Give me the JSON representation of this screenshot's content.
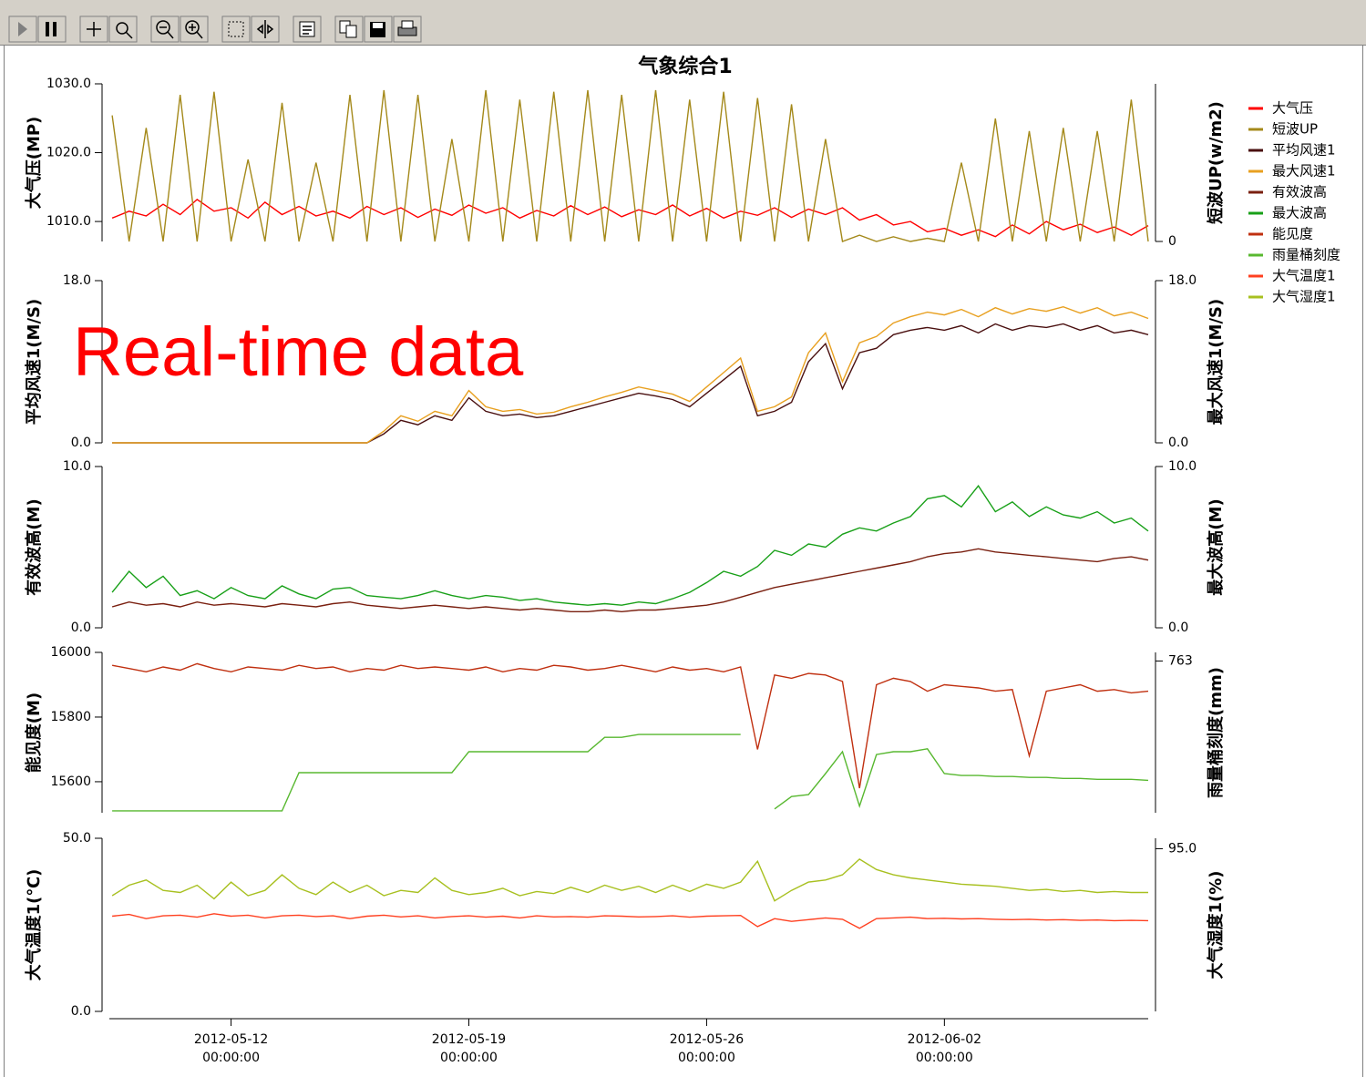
{
  "chart_data": {
    "type": "line",
    "title": "气象综合1",
    "annotation": "Real-time data",
    "legend": "right",
    "x": [
      "2012-05-08 12:00",
      "2012-05-09 00:00",
      "2012-05-09 12:00",
      "2012-05-10 00:00",
      "2012-05-10 12:00",
      "2012-05-11 00:00",
      "2012-05-11 12:00",
      "2012-05-12 00:00",
      "2012-05-12 12:00",
      "2012-05-13 00:00",
      "2012-05-13 12:00",
      "2012-05-14 00:00",
      "2012-05-14 12:00",
      "2012-05-15 00:00",
      "2012-05-15 12:00",
      "2012-05-16 00:00",
      "2012-05-16 12:00",
      "2012-05-17 00:00",
      "2012-05-17 12:00",
      "2012-05-18 00:00",
      "2012-05-18 12:00",
      "2012-05-19 00:00",
      "2012-05-19 12:00",
      "2012-05-20 00:00",
      "2012-05-20 12:00",
      "2012-05-21 00:00",
      "2012-05-21 12:00",
      "2012-05-22 00:00",
      "2012-05-22 12:00",
      "2012-05-23 00:00",
      "2012-05-23 12:00",
      "2012-05-24 00:00",
      "2012-05-24 12:00",
      "2012-05-25 00:00",
      "2012-05-25 12:00",
      "2012-05-26 00:00",
      "2012-05-26 12:00",
      "2012-05-27 00:00",
      "2012-05-27 12:00",
      "2012-05-28 00:00",
      "2012-05-28 12:00",
      "2012-05-29 00:00",
      "2012-05-29 12:00",
      "2012-05-30 00:00",
      "2012-05-30 12:00",
      "2012-05-31 00:00",
      "2012-05-31 12:00",
      "2012-06-01 00:00",
      "2012-06-01 12:00",
      "2012-06-02 00:00",
      "2012-06-02 12:00",
      "2012-06-03 00:00",
      "2012-06-03 12:00",
      "2012-06-04 00:00",
      "2012-06-04 12:00",
      "2012-06-05 00:00",
      "2012-06-05 12:00",
      "2012-06-06 00:00",
      "2012-06-06 12:00",
      "2012-06-07 00:00",
      "2012-06-07 12:00",
      "2012-06-08 00:00"
    ],
    "xlim": [
      "2012-05-08 10:00",
      "2012-06-08 00:00"
    ],
    "xticks": [
      {
        "value": "2012-05-12 00:00",
        "label": "2012-05-12",
        "time": "00:00:00"
      },
      {
        "value": "2012-05-19 00:00",
        "label": "2012-05-19",
        "time": "00:00:00"
      },
      {
        "value": "2012-05-26 00:00",
        "label": "2012-05-26",
        "time": "00:00:00"
      },
      {
        "value": "2012-06-02 00:00",
        "label": "2012-06-02",
        "time": "00:00:00"
      }
    ],
    "panels": [
      {
        "ylabel": "大气压(MP)",
        "y2label": "短波UP(w/m2)",
        "ylim": [
          1007.1,
          1030
        ],
        "yticks": [
          {
            "value": 1010,
            "label": "1010.0"
          },
          {
            "value": 1020,
            "label": "1020.0"
          },
          {
            "value": 1030,
            "label": "1030.0"
          }
        ],
        "y2lim": [
          0,
          1000
        ],
        "y2ticks": [
          0
        ],
        "series": [
          {
            "name": "大气压",
            "color": "#ff0000",
            "values": [
              1010.5,
              1011.5,
              1010.8,
              1012.5,
              1011.0,
              1013.2,
              1011.5,
              1012.0,
              1010.5,
              1012.8,
              1011.0,
              1012.2,
              1010.8,
              1011.5,
              1010.5,
              1012.2,
              1011.0,
              1012.0,
              1010.6,
              1011.8,
              1010.9,
              1012.4,
              1011.2,
              1012.0,
              1010.5,
              1011.6,
              1010.8,
              1012.3,
              1011.0,
              1012.1,
              1010.7,
              1011.7,
              1011.0,
              1012.4,
              1010.8,
              1011.9,
              1010.5,
              1011.5,
              1010.9,
              1012.0,
              1010.6,
              1011.8,
              1011.0,
              1012.0,
              1010.2,
              1011.0,
              1009.5,
              1010.0,
              1008.5,
              1009.0,
              1008.0,
              1008.8,
              1007.8,
              1009.5,
              1008.2,
              1010.0,
              1008.8,
              1009.6,
              1008.4,
              1009.2,
              1008.0,
              1009.4
            ]
          },
          {
            "name": "短波UP",
            "color": "#a4891a",
            "axis": "y2",
            "values": [
              800,
              0,
              720,
              0,
              930,
              0,
              950,
              0,
              520,
              0,
              880,
              0,
              500,
              0,
              930,
              0,
              960,
              0,
              930,
              0,
              650,
              0,
              960,
              0,
              900,
              0,
              950,
              0,
              960,
              0,
              930,
              0,
              960,
              0,
              900,
              0,
              950,
              0,
              910,
              0,
              870,
              0,
              650,
              0,
              40,
              0,
              30,
              0,
              20,
              0,
              500,
              0,
              780,
              0,
              700,
              0,
              720,
              0,
              700,
              0,
              900,
              0
            ]
          }
        ]
      },
      {
        "ylabel": "平均风速1(M/S)",
        "y2label": "最大风速1(M/S)",
        "ylim": [
          0,
          18
        ],
        "yticks": [
          {
            "value": 0,
            "label": "0.0"
          },
          {
            "value": 18,
            "label": "18.0"
          }
        ],
        "y2lim": [
          0,
          18
        ],
        "y2ticks": [
          {
            "value": 0,
            "label": "0.0"
          },
          {
            "value": 18,
            "label": "18.0"
          }
        ],
        "series": [
          {
            "name": "平均风速1",
            "color": "#4a1010",
            "values": [
              0,
              0,
              0,
              0,
              0,
              0,
              0,
              0,
              0,
              0,
              0,
              0,
              0,
              0,
              0,
              0,
              1.0,
              2.5,
              2.0,
              3.0,
              2.5,
              5.0,
              3.5,
              3.0,
              3.2,
              2.8,
              3.0,
              3.5,
              4.0,
              4.5,
              5.0,
              5.5,
              5.2,
              4.8,
              4.0,
              5.5,
              7.0,
              8.5,
              3.0,
              3.5,
              4.5,
              9.0,
              11.0,
              6.0,
              10.0,
              10.5,
              12.0,
              12.5,
              12.8,
              12.5,
              13.0,
              12.2,
              13.2,
              12.5,
              13.0,
              12.8,
              13.2,
              12.5,
              13.0,
              12.2,
              12.5,
              12.0
            ]
          },
          {
            "name": "最大风速1",
            "color": "#e8a020",
            "axis": "y2",
            "values": [
              0,
              0,
              0,
              0,
              0,
              0,
              0,
              0,
              0,
              0,
              0,
              0,
              0,
              0,
              0,
              0,
              1.3,
              3.0,
              2.4,
              3.5,
              3.0,
              5.8,
              4.0,
              3.5,
              3.7,
              3.2,
              3.4,
              4.0,
              4.5,
              5.1,
              5.6,
              6.2,
              5.8,
              5.4,
              4.6,
              6.2,
              7.8,
              9.4,
              3.5,
              4.0,
              5.1,
              10.0,
              12.2,
              6.8,
              11.1,
              11.8,
              13.3,
              14.0,
              14.5,
              14.2,
              14.8,
              14.0,
              15.0,
              14.3,
              14.9,
              14.6,
              15.1,
              14.4,
              15.0,
              14.1,
              14.5,
              13.8
            ]
          }
        ]
      },
      {
        "ylabel": "有效波高(M)",
        "y2label": "最大波高(M)",
        "ylim": [
          0,
          10
        ],
        "yticks": [
          {
            "value": 0,
            "label": "0.0"
          },
          {
            "value": 10,
            "label": "10.0"
          }
        ],
        "y2lim": [
          0,
          10
        ],
        "y2ticks": [
          {
            "value": 0,
            "label": "0.0"
          },
          {
            "value": 10,
            "label": "10.0"
          }
        ],
        "series": [
          {
            "name": "有效波高",
            "color": "#7a2010",
            "values": [
              1.3,
              1.6,
              1.4,
              1.5,
              1.3,
              1.6,
              1.4,
              1.5,
              1.4,
              1.3,
              1.5,
              1.4,
              1.3,
              1.5,
              1.6,
              1.4,
              1.3,
              1.2,
              1.3,
              1.4,
              1.3,
              1.2,
              1.3,
              1.2,
              1.1,
              1.2,
              1.1,
              1.0,
              1.0,
              1.1,
              1.0,
              1.1,
              1.1,
              1.2,
              1.3,
              1.4,
              1.6,
              1.9,
              2.2,
              2.5,
              2.7,
              2.9,
              3.1,
              3.3,
              3.5,
              3.7,
              3.9,
              4.1,
              4.4,
              4.6,
              4.7,
              4.9,
              4.7,
              4.6,
              4.5,
              4.4,
              4.3,
              4.2,
              4.1,
              4.3,
              4.4,
              4.2
            ]
          },
          {
            "name": "最大波高",
            "color": "#18a018",
            "axis": "y2",
            "values": [
              2.2,
              3.5,
              2.5,
              3.2,
              2.0,
              2.3,
              1.8,
              2.5,
              2.0,
              1.8,
              2.6,
              2.1,
              1.8,
              2.4,
              2.5,
              2.0,
              1.9,
              1.8,
              2.0,
              2.3,
              2.0,
              1.8,
              2.0,
              1.9,
              1.7,
              1.8,
              1.6,
              1.5,
              1.4,
              1.5,
              1.4,
              1.6,
              1.5,
              1.8,
              2.2,
              2.8,
              3.5,
              3.2,
              3.8,
              4.8,
              4.5,
              5.2,
              5.0,
              5.8,
              6.2,
              6.0,
              6.5,
              6.9,
              8.0,
              8.2,
              7.5,
              8.8,
              7.2,
              7.8,
              6.9,
              7.5,
              7.0,
              6.8,
              7.2,
              6.5,
              6.8,
              6.0
            ]
          }
        ]
      },
      {
        "ylabel": "能见度(M)",
        "y2label": "雨量桶刻度(mm)",
        "ylim": [
          15504,
          16000
        ],
        "yticks": [
          15600,
          15800,
          16000
        ],
        "y2lim": [
          747.1,
          763.9
        ],
        "y2ticks": [
          763
        ],
        "series": [
          {
            "name": "能见度",
            "color": "#c03010",
            "values": [
              15960,
              15950,
              15940,
              15955,
              15945,
              15965,
              15950,
              15940,
              15955,
              15950,
              15945,
              15960,
              15950,
              15955,
              15940,
              15950,
              15945,
              15960,
              15950,
              15955,
              15950,
              15945,
              15955,
              15940,
              15950,
              15945,
              15960,
              15955,
              15945,
              15950,
              15960,
              15950,
              15940,
              15955,
              15945,
              15950,
              15940,
              15955,
              15700,
              15930,
              15920,
              15935,
              15930,
              15910,
              15580,
              15900,
              15920,
              15910,
              15880,
              15900,
              15895,
              15890,
              15880,
              15885,
              15680,
              15880,
              15890,
              15900,
              15880,
              15885,
              15875,
              15880
            ]
          },
          {
            "name": "雨量桶刻度",
            "color": "#58b830",
            "axis": "y2",
            "values": [
              747.3,
              747.3,
              747.3,
              747.3,
              747.3,
              747.3,
              747.3,
              747.3,
              747.3,
              747.3,
              747.3,
              751.3,
              751.3,
              751.3,
              751.3,
              751.3,
              751.3,
              751.3,
              751.3,
              751.3,
              751.3,
              753.5,
              753.5,
              753.5,
              753.5,
              753.5,
              753.5,
              753.5,
              753.5,
              755.0,
              755.0,
              755.3,
              755.3,
              755.3,
              755.3,
              755.3,
              755.3,
              755.3,
              null,
              747.5,
              748.8,
              749.0,
              751.2,
              753.5,
              747.8,
              753.2,
              753.5,
              753.5,
              753.8,
              751.2,
              751.0,
              751.0,
              750.9,
              750.9,
              750.8,
              750.8,
              750.7,
              750.7,
              750.6,
              750.6,
              750.6,
              750.5
            ]
          }
        ]
      },
      {
        "ylabel": "大气温度1(℃)",
        "y2label": "大气湿度1(%)",
        "ylim": [
          0,
          50
        ],
        "yticks": [
          {
            "value": 0,
            "label": "0.0"
          },
          {
            "value": 50,
            "label": "50.0"
          }
        ],
        "y2lim": [
          79.4,
          96.0
        ],
        "y2ticks": [
          {
            "value": 95,
            "label": "95.0"
          }
        ],
        "series": [
          {
            "name": "大气温度1",
            "color": "#ff4020",
            "values": [
              27.5,
              28.0,
              26.8,
              27.6,
              27.8,
              27.2,
              28.2,
              27.5,
              27.8,
              27.0,
              27.6,
              27.8,
              27.4,
              27.6,
              26.8,
              27.5,
              27.8,
              27.3,
              27.6,
              27.0,
              27.4,
              27.6,
              27.2,
              27.5,
              27.0,
              27.6,
              27.3,
              27.4,
              27.2,
              27.6,
              27.5,
              27.3,
              27.4,
              27.6,
              27.2,
              27.5,
              27.6,
              27.7,
              24.5,
              26.8,
              26.0,
              26.5,
              27.0,
              26.6,
              24.0,
              26.8,
              27.0,
              27.2,
              26.8,
              26.9,
              26.7,
              26.8,
              26.6,
              26.5,
              26.6,
              26.4,
              26.5,
              26.3,
              26.4,
              26.2,
              26.3,
              26.2
            ]
          },
          {
            "name": "大气湿度1",
            "color": "#a8c020",
            "axis": "y2",
            "values": [
              90.5,
              91.5,
              92.0,
              91.0,
              90.8,
              91.5,
              90.2,
              91.8,
              90.5,
              91.0,
              92.5,
              91.2,
              90.6,
              91.8,
              90.8,
              91.5,
              90.5,
              91.0,
              90.8,
              92.2,
              91.0,
              90.6,
              90.8,
              91.2,
              90.5,
              90.9,
              90.7,
              91.3,
              90.8,
              91.5,
              91.0,
              91.4,
              90.8,
              91.5,
              90.9,
              91.6,
              91.2,
              91.8,
              93.8,
              90.0,
              91.0,
              91.8,
              92.0,
              92.5,
              94.0,
              93.0,
              92.5,
              92.2,
              92.0,
              91.8,
              91.6,
              91.5,
              91.4,
              91.2,
              91.0,
              91.1,
              90.9,
              91.0,
              90.8,
              90.9,
              90.8,
              90.8
            ]
          }
        ]
      }
    ]
  }
}
